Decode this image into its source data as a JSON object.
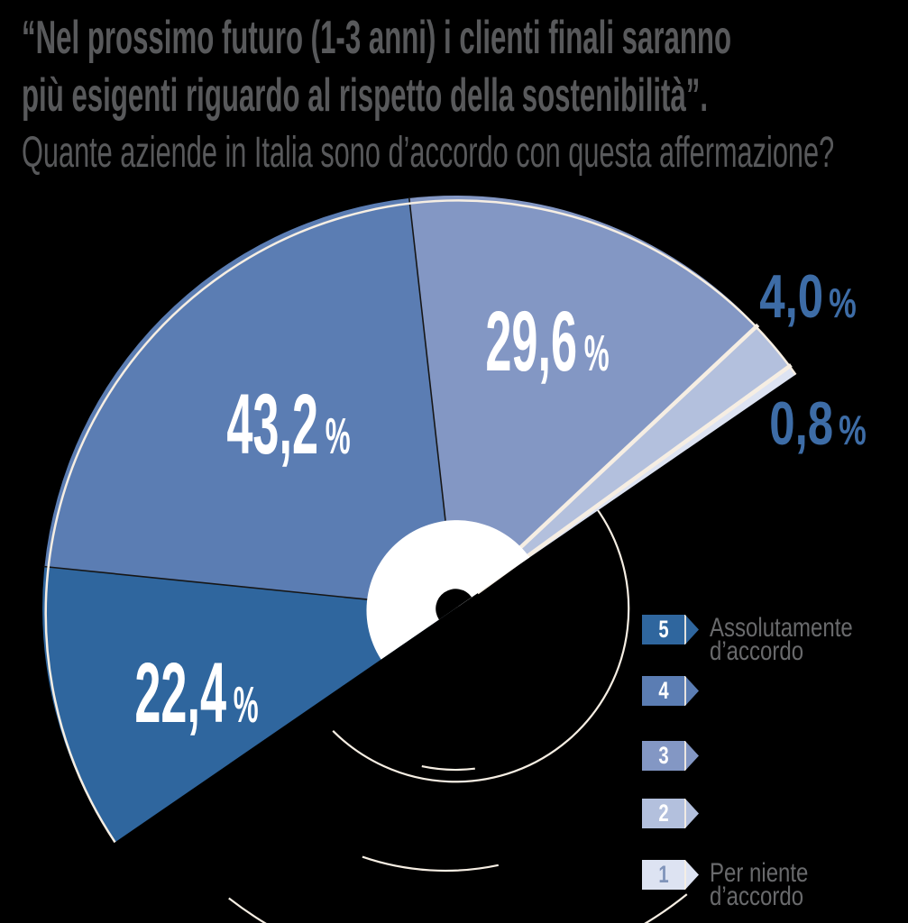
{
  "title": {
    "lines": [
      "“Nel prossimo futuro (1-3 anni) i clienti finali saranno",
      "più esigenti riguardo al rispetto della sostenibilità”.",
      "Quante aziende in Italia sono d’accordo con questa affermazione?"
    ],
    "color": "#58595b"
  },
  "chart_data": {
    "type": "pie",
    "variant": "half-donut-fan",
    "title": "Quante aziende in Italia sono d’accordo con questa affermazione?",
    "unit": "%",
    "start_angle_deg": 34.5,
    "span_deg": 180,
    "degrees_per_percent": 1.8,
    "slices": [
      {
        "rating": "1",
        "value": 0.8,
        "value_text": "0,8",
        "unit": "%",
        "color": "#dde3f2",
        "label_position": "outside"
      },
      {
        "rating": "2",
        "value": 4.0,
        "value_text": "4,0",
        "unit": "%",
        "color": "#b3c0dd",
        "label_position": "outside"
      },
      {
        "rating": "3",
        "value": 29.6,
        "value_text": "29,6",
        "unit": "%",
        "color": "#8397c4",
        "label_position": "inside"
      },
      {
        "rating": "4",
        "value": 43.2,
        "value_text": "43,2",
        "unit": "%",
        "color": "#5b7db3",
        "label_position": "inside"
      },
      {
        "rating": "5",
        "value": 22.4,
        "value_text": "22,4",
        "unit": "%",
        "color": "#2f669e",
        "label_position": "inside"
      }
    ],
    "legend": [
      {
        "value": "5",
        "color": "#2f669e",
        "text_color": "#ffffff",
        "label": "Assolutamente d’accordo"
      },
      {
        "value": "4",
        "color": "#5b7db3",
        "text_color": "#ffffff",
        "label": ""
      },
      {
        "value": "3",
        "color": "#8397c4",
        "text_color": "#ffffff",
        "label": ""
      },
      {
        "value": "2",
        "color": "#b3c0dd",
        "text_color": "#ffffff",
        "label": ""
      },
      {
        "value": "1",
        "color": "#dde3f2",
        "text_color": "#8094ba",
        "label": "Per niente d’accordo"
      }
    ],
    "legend_position": "right-bottom"
  },
  "colors": {
    "background": "#000000",
    "inside_label": "#ffffff",
    "outside_label": "#3d6ca6",
    "legend_text": "#696a6c",
    "separator_cream": "#f6eee3",
    "hub_white": "#ffffff"
  }
}
